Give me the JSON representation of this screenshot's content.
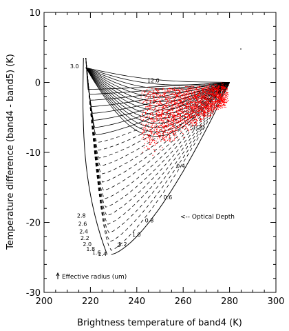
{
  "chart_data": {
    "type": "scatter",
    "title": "",
    "xlabel": "Brightness temperature of band4 (K)",
    "ylabel": "Temperature difference (band4 - band5) (K)",
    "xlim": [
      200,
      300
    ],
    "ylim": [
      -30,
      10
    ],
    "x_ticks": [
      "200",
      "220",
      "240",
      "260",
      "280",
      "300"
    ],
    "y_ticks": [
      "10",
      "0",
      "-10",
      "-20",
      "-30"
    ],
    "grid": false,
    "background_colors": {
      "observations": "#ff0000",
      "lookup_table": "#000000"
    },
    "lookup_table": {
      "top_left": [
        217,
        3.5
      ],
      "bottom": [
        229,
        -24.6
      ],
      "right": [
        280,
        0
      ],
      "re_label_ticks": [
        {
          "text": "3.0",
          "x": 215,
          "y": 2.0
        },
        {
          "text": "2.8",
          "x": 218,
          "y": -19.3
        },
        {
          "text": "2.6",
          "x": 218.5,
          "y": -20.5
        },
        {
          "text": "2.4",
          "x": 219,
          "y": -21.6
        },
        {
          "text": "2.2",
          "x": 219.5,
          "y": -22.5
        },
        {
          "text": "2.0",
          "x": 220.5,
          "y": -23.4
        },
        {
          "text": "1.8",
          "x": 222,
          "y": -24.1
        },
        {
          "text": "1.6",
          "x": 224.5,
          "y": -24.6
        },
        {
          "text": "1.4",
          "x": 227,
          "y": -24.8
        },
        {
          "text": "2",
          "x": 233,
          "y": -23.5
        }
      ],
      "tau_label_ticks": [
        {
          "text": "12.0",
          "x": 244.5,
          "y": 0
        },
        {
          "text": "1.20",
          "x": 264,
          "y": -6.7
        },
        {
          "text": "0.4",
          "x": 257,
          "y": -12.2
        },
        {
          "text": "0.6",
          "x": 251.5,
          "y": -16.7
        },
        {
          "text": "0.8",
          "x": 243.5,
          "y": -20
        },
        {
          "text": "1.0",
          "x": 238,
          "y": -22
        },
        {
          "text": "1.2",
          "x": 232,
          "y": -23.4
        }
      ]
    },
    "scatter_region": {
      "series_name": "observations",
      "color": "#ff0000",
      "x_range": [
        240,
        280
      ],
      "y_range": [
        -12,
        0
      ]
    },
    "annotations": [
      {
        "text": "<-- Optical Depth",
        "x": 259,
        "y": -19.3
      },
      {
        "text": "Effective radius (um)",
        "x": 207,
        "y": -28
      }
    ]
  }
}
